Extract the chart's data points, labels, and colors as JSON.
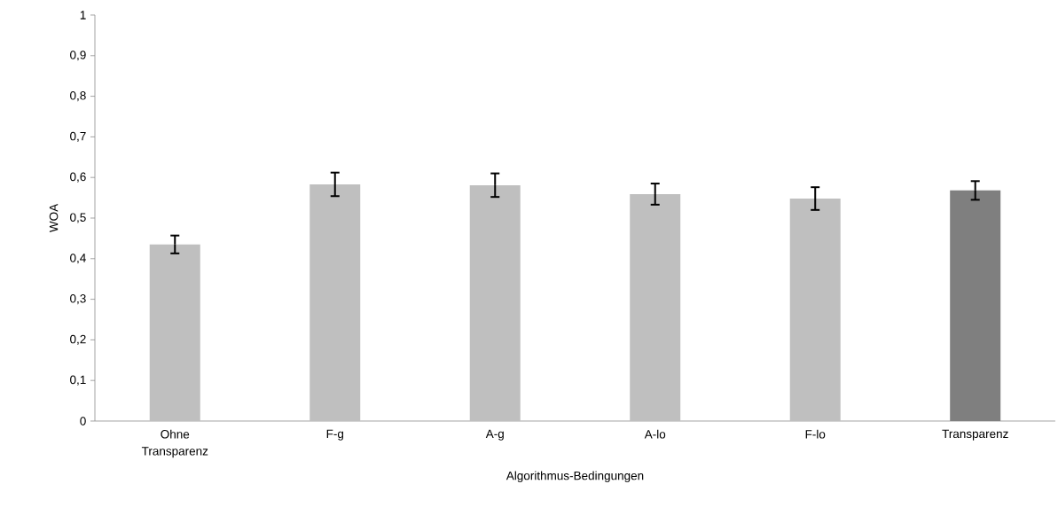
{
  "chart_data": {
    "type": "bar",
    "xlabel": "Algorithmus-Bedingungen",
    "ylabel": "WOA",
    "categories": [
      "Ohne Transparenz",
      "F-g",
      "A-g",
      "A-lo",
      "F-lo",
      "Transparenz"
    ],
    "values": [
      0.435,
      0.583,
      0.581,
      0.559,
      0.548,
      0.568
    ],
    "errors": [
      0.022,
      0.029,
      0.029,
      0.026,
      0.028,
      0.023
    ],
    "colors": [
      "#bfbfbf",
      "#bfbfbf",
      "#bfbfbf",
      "#bfbfbf",
      "#bfbfbf",
      "#7f7f7f"
    ],
    "ylim": [
      0,
      1
    ],
    "yticks": [
      0,
      {
        "value": 0.1,
        "label": "0,1"
      },
      {
        "value": 0.2,
        "label": "0,2"
      },
      {
        "value": 0.3,
        "label": "0,3"
      },
      {
        "value": 0.4,
        "label": "0,4"
      },
      {
        "value": 0.5,
        "label": "0,5"
      },
      {
        "value": 0.6,
        "label": "0,6"
      },
      {
        "value": 0.7,
        "label": "0,7"
      },
      {
        "value": 0.8,
        "label": "0,8"
      },
      {
        "value": 0.9,
        "label": "0,9"
      },
      1
    ],
    "grid": false
  }
}
